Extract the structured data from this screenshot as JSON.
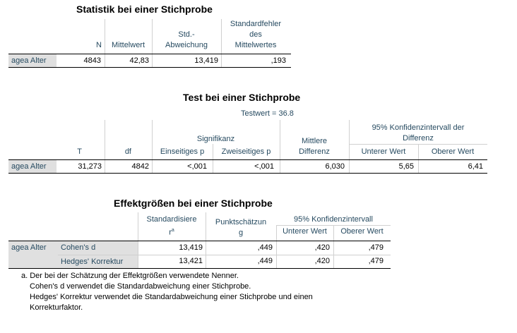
{
  "t1": {
    "title": "Statistik bei einer Stichprobe",
    "headers": [
      "N",
      "Mittelwert",
      "Std.-\nAbweichung",
      "Standardfehler\ndes\nMittelwertes"
    ],
    "h_n": "N",
    "h_mean": "Mittelwert",
    "h_sd1": "Std.-",
    "h_sd2": "Abweichung",
    "h_se1": "Standardfehler",
    "h_se2": "des",
    "h_se3": "Mittelwertes",
    "row_label": "agea Alter",
    "values": [
      "4843",
      "42,83",
      "13,419",
      ",193"
    ]
  },
  "t2": {
    "title": "Test bei einer Stichprobe",
    "testwert": "Testwert = 36.8",
    "h_t": "T",
    "h_df": "df",
    "h_sig": "Signifikanz",
    "h_one": "Einseitiges p",
    "h_two": "Zweiseitiges p",
    "h_diff1": "Mittlere",
    "h_diff2": "Differenz",
    "h_ci1": "95% Konfidenzintervall der",
    "h_ci2": "Differenz",
    "h_lower": "Unterer Wert",
    "h_upper": "Oberer Wert",
    "row_label": "agea Alter",
    "values": [
      "31,273",
      "4842",
      "<,001",
      "<,001",
      "6,030",
      "5,65",
      "6,41"
    ]
  },
  "t3": {
    "title": "Effektgrößen bei einer Stichprobe",
    "h_std1": "Standardisiere",
    "h_std2": "r",
    "h_std_sup": "a",
    "h_pt1": "Punktschätzun",
    "h_pt2": "g",
    "h_ci": "95% Konfidenzintervall",
    "h_lower": "Unterer Wert",
    "h_upper": "Oberer Wert",
    "row_label": "agea Alter",
    "rows": [
      {
        "label": "Cohen's d",
        "values": [
          "13,419",
          ",449",
          ",420",
          ",479"
        ]
      },
      {
        "label": "Hedges' Korrektur",
        "values": [
          "13,421",
          ",449",
          ",420",
          ",479"
        ]
      }
    ]
  },
  "footnote": {
    "line1": "a. Der bei der Schätzung der Effektgrößen verwendete Nenner.",
    "line2": "Cohen's d verwendet die Standardabweichung einer Stichprobe.",
    "line3": "Hedges' Korrektur verwendet die Standardabweichung einer Stichprobe und einen",
    "line4": "Korrekturfaktor."
  }
}
